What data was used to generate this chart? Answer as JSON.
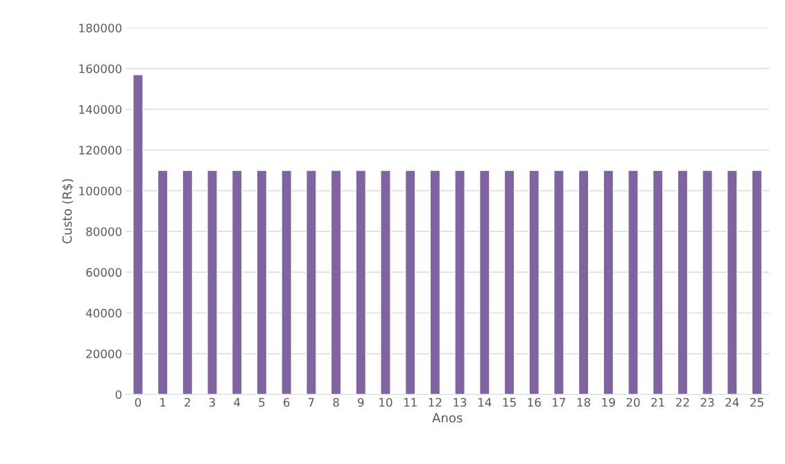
{
  "chart_data": {
    "type": "bar",
    "xlabel": "Anos",
    "ylabel": "Custo (R$)",
    "categories": [
      "0",
      "1",
      "2",
      "3",
      "4",
      "5",
      "6",
      "7",
      "8",
      "9",
      "10",
      "11",
      "12",
      "13",
      "14",
      "15",
      "16",
      "17",
      "18",
      "19",
      "20",
      "21",
      "22",
      "23",
      "24",
      "25"
    ],
    "values": [
      157000,
      110000,
      110000,
      110000,
      110000,
      110000,
      110000,
      110000,
      110000,
      110000,
      110000,
      110000,
      110000,
      110000,
      110000,
      110000,
      110000,
      110000,
      110000,
      110000,
      110000,
      110000,
      110000,
      110000,
      110000,
      110000
    ],
    "color": "#8064a2",
    "ylim": [
      0,
      180000
    ],
    "yticks": [
      0,
      20000,
      40000,
      60000,
      80000,
      100000,
      120000,
      140000,
      160000,
      180000
    ],
    "grid": "y",
    "legend": false
  }
}
